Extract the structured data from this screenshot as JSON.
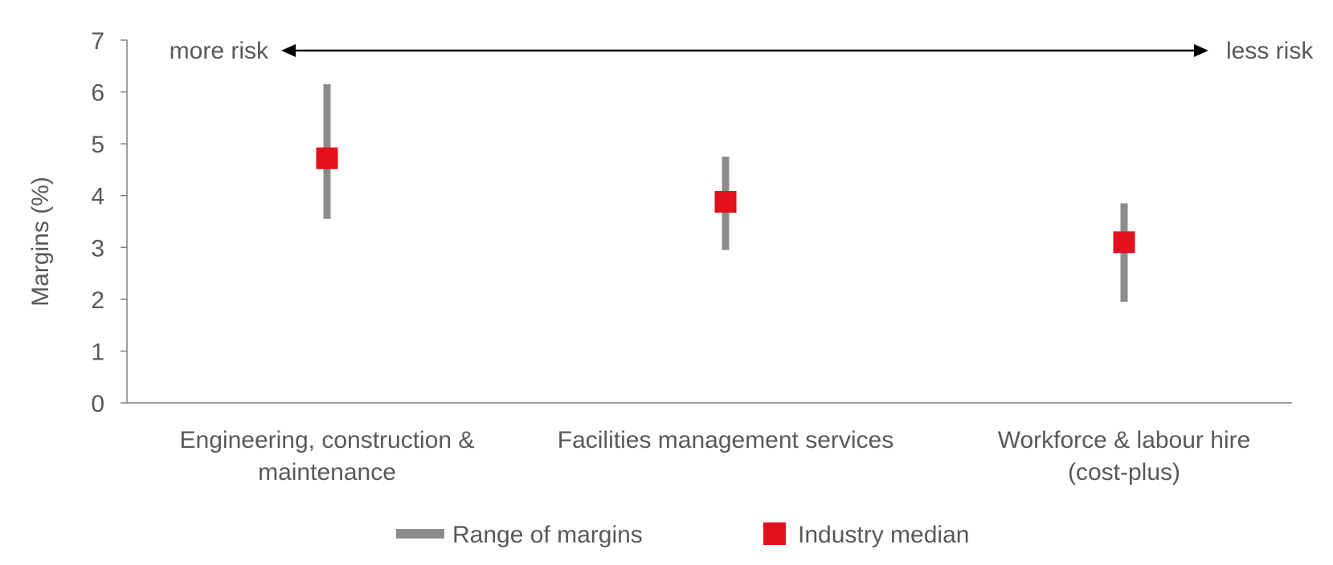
{
  "chart_data": {
    "type": "range",
    "categories": [
      [
        "Engineering, construction &",
        "maintenance"
      ],
      [
        "Facilities management services"
      ],
      [
        "Workforce & labour hire",
        "(cost-plus)"
      ]
    ],
    "series": [
      {
        "name": "Range of margins",
        "kind": "range",
        "low": [
          3.55,
          2.95,
          1.95
        ],
        "high": [
          6.15,
          4.75,
          3.85
        ]
      },
      {
        "name": "Industry median",
        "kind": "marker",
        "values": [
          4.72,
          3.88,
          3.1
        ]
      }
    ],
    "ylabel": "Margins (%)",
    "xlabel": "",
    "ylim": [
      0,
      7
    ],
    "yticks": [
      0,
      1,
      2,
      3,
      4,
      5,
      6,
      7
    ],
    "grid": false,
    "legend_position": "bottom",
    "annotation": {
      "left": "more risk",
      "right": "less risk"
    },
    "colors": {
      "range": "#8c8c8c",
      "median": "#e3101e",
      "axis": "#7f7f7f",
      "text": "#595959",
      "arrow": "#000000"
    }
  }
}
